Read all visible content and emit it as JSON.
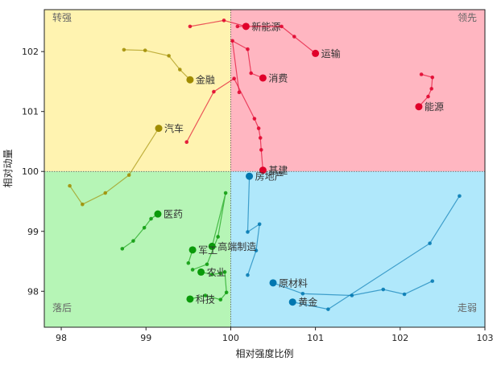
{
  "chart_data": {
    "type": "scatter",
    "title": "",
    "xlabel": "相对强度比例",
    "ylabel": "相对动量",
    "xlim": [
      97.8,
      103.0
    ],
    "ylim": [
      97.4,
      102.7
    ],
    "xticks": [
      98,
      99,
      100,
      101,
      102,
      103
    ],
    "yticks": [
      98,
      99,
      100,
      101,
      102
    ],
    "center": [
      100,
      100
    ],
    "quadrants": [
      {
        "name": "转强",
        "color": "#fff3b0",
        "position": "top-left"
      },
      {
        "name": "领先",
        "color": "#ffb6c1",
        "position": "top-right"
      },
      {
        "name": "落后",
        "color": "#b6f5b6",
        "position": "bottom-left"
      },
      {
        "name": "走弱",
        "color": "#b0e8fb",
        "position": "bottom-right"
      }
    ],
    "series": [
      {
        "name": "新能源",
        "color": "#e0002a",
        "points": [
          [
            99.52,
            102.42
          ],
          [
            99.92,
            102.52
          ],
          [
            100.18,
            102.42
          ]
        ]
      },
      {
        "name": "运输",
        "color": "#e0002a",
        "points": [
          [
            100.08,
            102.42
          ],
          [
            100.6,
            102.42
          ],
          [
            100.75,
            102.25
          ],
          [
            101.0,
            101.97
          ]
        ]
      },
      {
        "name": "消费",
        "color": "#e0002a",
        "points": [
          [
            100.1,
            101.32
          ],
          [
            100.02,
            102.18
          ],
          [
            100.2,
            102.04
          ],
          [
            100.24,
            101.64
          ],
          [
            100.38,
            101.56
          ]
        ]
      },
      {
        "name": "能源",
        "color": "#e0002a",
        "points": [
          [
            102.25,
            101.62
          ],
          [
            102.38,
            101.57
          ],
          [
            102.37,
            101.38
          ],
          [
            102.33,
            101.25
          ],
          [
            102.22,
            101.08
          ]
        ]
      },
      {
        "name": "基建",
        "color": "#e0002a",
        "points": [
          [
            99.48,
            100.49
          ],
          [
            99.8,
            101.33
          ],
          [
            100.04,
            101.55
          ],
          [
            100.28,
            100.88
          ],
          [
            100.33,
            100.72
          ],
          [
            100.35,
            100.56
          ],
          [
            100.36,
            100.36
          ],
          [
            100.38,
            100.02
          ]
        ]
      },
      {
        "name": "金融",
        "color": "#a08c00",
        "points": [
          [
            98.74,
            102.03
          ],
          [
            98.99,
            102.02
          ],
          [
            99.27,
            101.93
          ],
          [
            99.4,
            101.7
          ],
          [
            99.52,
            101.53
          ]
        ]
      },
      {
        "name": "汽车",
        "color": "#a08c00",
        "points": [
          [
            98.1,
            99.76
          ],
          [
            98.25,
            99.45
          ],
          [
            98.52,
            99.64
          ],
          [
            98.8,
            99.94
          ],
          [
            99.15,
            100.72
          ]
        ]
      },
      {
        "name": "房地产",
        "color": "#0077b0",
        "points": [
          [
            100.2,
            98.27
          ],
          [
            100.3,
            98.68
          ],
          [
            100.34,
            99.12
          ],
          [
            100.2,
            98.99
          ],
          [
            100.22,
            99.92
          ]
        ]
      },
      {
        "name": "高端制造",
        "color": "#0a9a0a",
        "points": [
          [
            99.55,
            98.36
          ],
          [
            99.72,
            98.45
          ],
          [
            99.85,
            98.91
          ],
          [
            99.94,
            99.64
          ],
          [
            99.78,
            98.75
          ]
        ]
      },
      {
        "name": "医药",
        "color": "#0a9a0a",
        "points": [
          [
            98.72,
            98.71
          ],
          [
            98.85,
            98.84
          ],
          [
            98.98,
            99.06
          ],
          [
            99.06,
            99.21
          ],
          [
            99.14,
            99.29
          ]
        ]
      },
      {
        "name": "军工",
        "color": "#0a9a0a",
        "points": [
          [
            99.5,
            98.47
          ],
          [
            99.55,
            98.69
          ]
        ]
      },
      {
        "name": "农业",
        "color": "#0a9a0a",
        "points": [
          [
            99.88,
            98.3
          ],
          [
            99.78,
            98.28
          ],
          [
            99.65,
            98.32
          ]
        ]
      },
      {
        "name": "科技",
        "color": "#0a9a0a",
        "points": [
          [
            99.93,
            98.32
          ],
          [
            99.95,
            97.98
          ],
          [
            99.88,
            97.86
          ],
          [
            99.7,
            97.93
          ],
          [
            99.52,
            97.87
          ]
        ]
      },
      {
        "name": "原材料",
        "color": "#0077b0",
        "points": [
          [
            102.38,
            98.17
          ],
          [
            102.05,
            97.95
          ],
          [
            101.8,
            98.03
          ],
          [
            101.43,
            97.93
          ],
          [
            100.85,
            97.96
          ],
          [
            100.5,
            98.14
          ]
        ]
      },
      {
        "name": "黄金",
        "color": "#0077b0",
        "points": [
          [
            102.7,
            99.59
          ],
          [
            102.35,
            98.8
          ],
          [
            101.15,
            97.7
          ],
          [
            100.73,
            97.82
          ]
        ]
      }
    ]
  }
}
